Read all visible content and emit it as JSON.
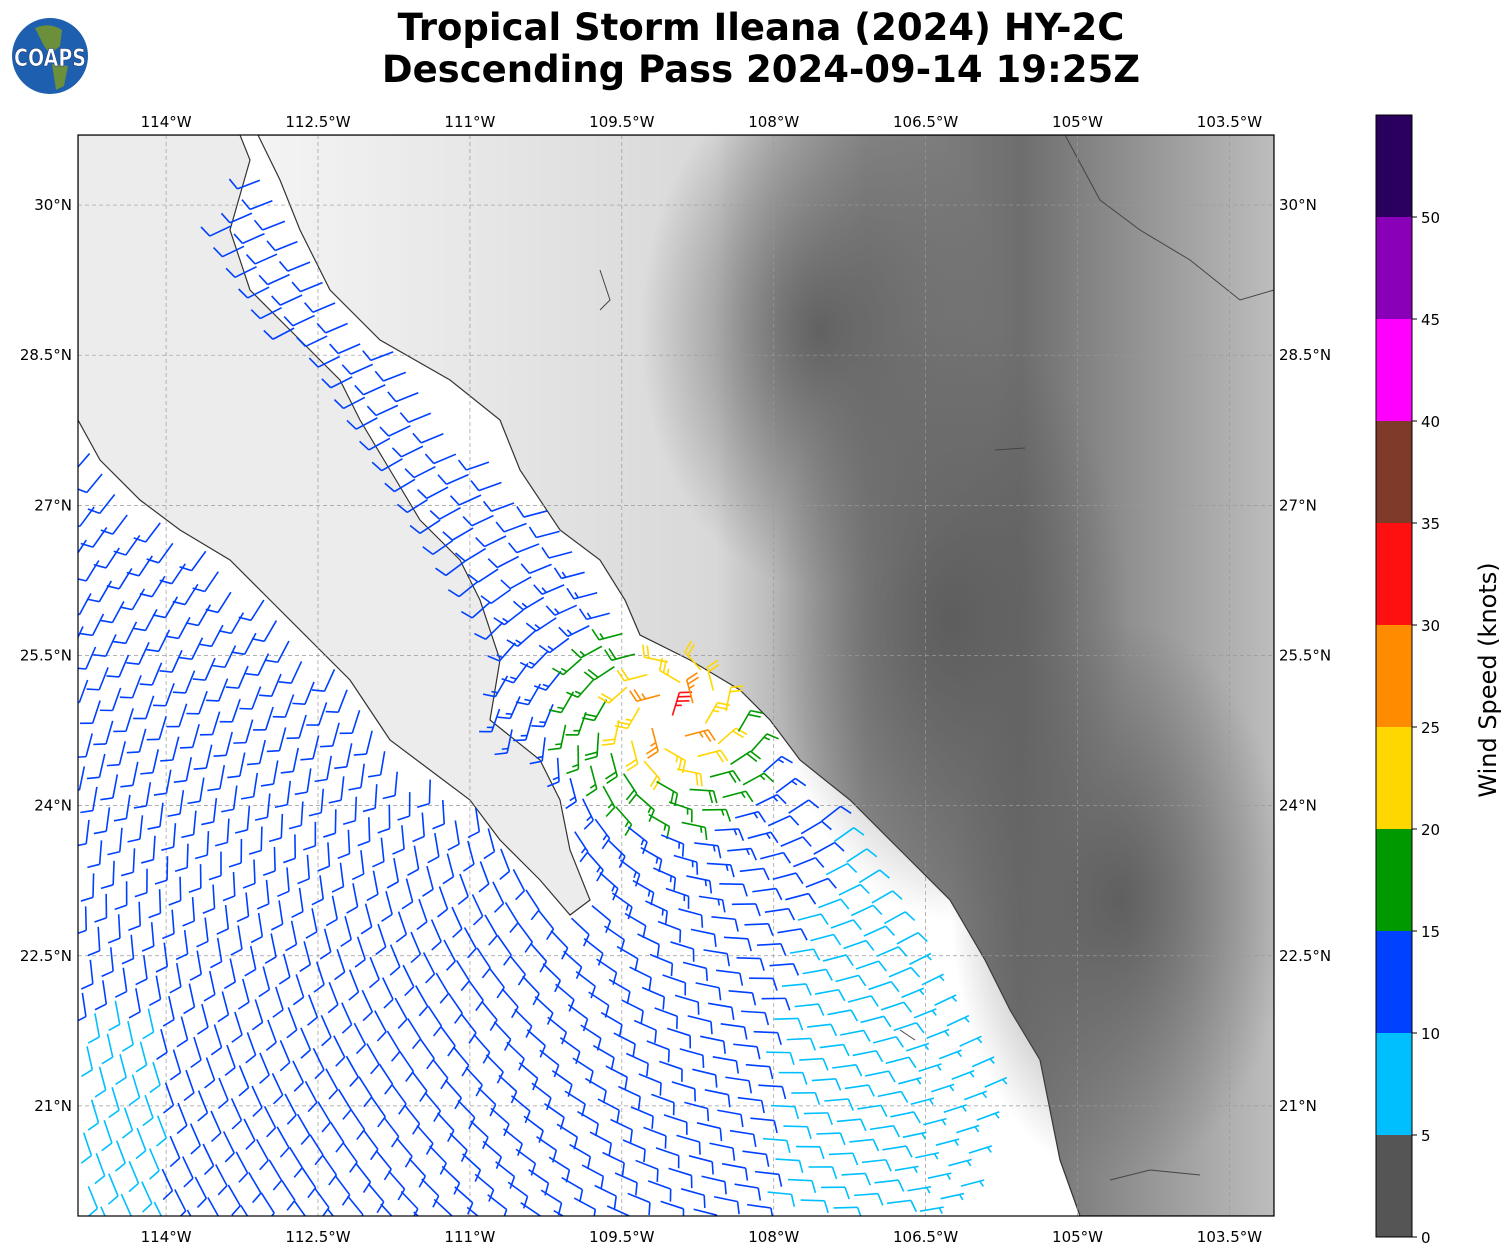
{
  "header": {
    "title_line1": "Tropical Storm Ileana (2024) HY-2C",
    "title_line2": "Descending Pass 2024-09-14 19:25Z",
    "logo_text": "COAPS"
  },
  "map": {
    "projection": "PlateCarree",
    "lon_range": [
      -114.87,
      -103.06
    ],
    "lat_range": [
      19.9,
      30.7
    ],
    "lon_ticks": [
      {
        "value": -114,
        "label": "114°W"
      },
      {
        "value": -112.5,
        "label": "112.5°W"
      },
      {
        "value": -111,
        "label": "111°W"
      },
      {
        "value": -109.5,
        "label": "109.5°W"
      },
      {
        "value": -108,
        "label": "108°W"
      },
      {
        "value": -106.5,
        "label": "106.5°W"
      },
      {
        "value": -105,
        "label": "105°W"
      },
      {
        "value": -103.5,
        "label": "103.5°W"
      }
    ],
    "lat_ticks": [
      {
        "value": 30,
        "label": "30°N"
      },
      {
        "value": 28.5,
        "label": "28.5°N"
      },
      {
        "value": 27,
        "label": "27°N"
      },
      {
        "value": 25.5,
        "label": "25.5°N"
      },
      {
        "value": 24,
        "label": "24°N"
      },
      {
        "value": 22.5,
        "label": "22.5°N"
      },
      {
        "value": 21,
        "label": "21°N"
      }
    ],
    "gridlines": true,
    "background": "grayscale terrain elevation",
    "storm_center": {
      "lon": -109.0,
      "lat": 24.9
    },
    "max_wind_knots": 33
  },
  "colorbar": {
    "label": "Wind Speed (knots)",
    "ticks": [
      "0",
      "5",
      "10",
      "15",
      "20",
      "25",
      "30",
      "35",
      "40",
      "45",
      "50"
    ],
    "bins": [
      {
        "min": 0,
        "max": 5,
        "color": "#555555"
      },
      {
        "min": 5,
        "max": 10,
        "color": "#00bfff"
      },
      {
        "min": 10,
        "max": 15,
        "color": "#0040ff"
      },
      {
        "min": 15,
        "max": 20,
        "color": "#009900"
      },
      {
        "min": 20,
        "max": 25,
        "color": "#ffd700"
      },
      {
        "min": 25,
        "max": 30,
        "color": "#ff8c00"
      },
      {
        "min": 30,
        "max": 35,
        "color": "#ff1010"
      },
      {
        "min": 35,
        "max": 40,
        "color": "#7f3a2a"
      },
      {
        "min": 40,
        "max": 45,
        "color": "#ff00ff"
      },
      {
        "min": 45,
        "max": 50,
        "color": "#8a00b8"
      },
      {
        "min": 50,
        "max": 55,
        "color": "#2a005f"
      }
    ]
  }
}
